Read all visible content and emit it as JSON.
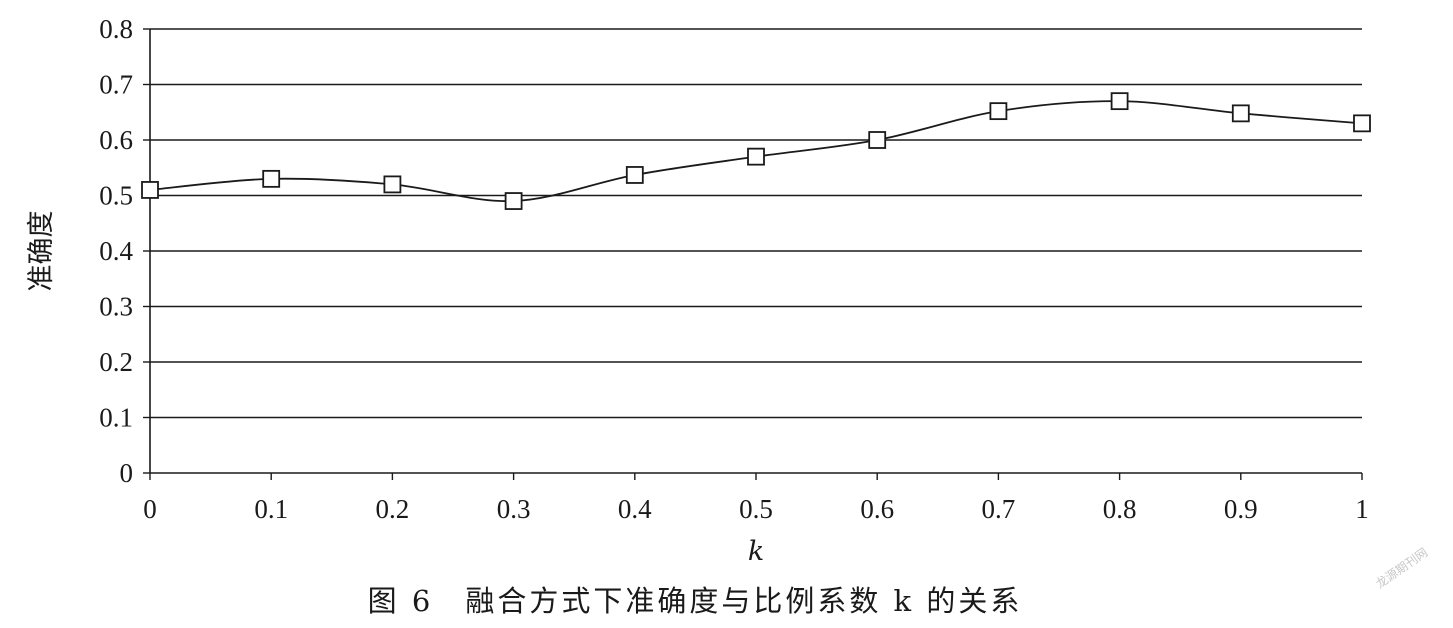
{
  "chart_data": {
    "type": "line",
    "x": [
      0,
      0.1,
      0.2,
      0.3,
      0.4,
      0.5,
      0.6,
      0.7,
      0.8,
      0.9,
      1
    ],
    "series": [
      {
        "values": [
          0.51,
          0.53,
          0.52,
          0.49,
          0.537,
          0.57,
          0.6,
          0.652,
          0.67,
          0.648,
          0.63
        ],
        "marker": "open-square"
      }
    ],
    "xticks": [
      "0",
      "0.1",
      "0.2",
      "0.3",
      "0.4",
      "0.5",
      "0.6",
      "0.7",
      "0.8",
      "0.9",
      "1"
    ],
    "yticks": [
      "0",
      "0.1",
      "0.2",
      "0.3",
      "0.4",
      "0.5",
      "0.6",
      "0.7",
      "0.8"
    ],
    "xlabel": "k",
    "ylabel": "准确度",
    "xlim": [
      0,
      1
    ],
    "ylim": [
      0,
      0.8
    ],
    "grid": "horizontal",
    "line_color": "#1a1a1a"
  },
  "caption": "图 6　融合方式下准确度与比例系数 k 的关系",
  "watermark": "龙源期刊网"
}
